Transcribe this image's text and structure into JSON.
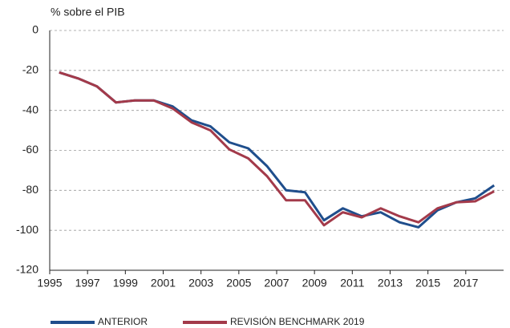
{
  "chart_data": {
    "type": "line",
    "y_axis_label": "% sobre el PIB",
    "x": [
      1995.5,
      1996.5,
      1997.5,
      1998.5,
      1999.5,
      2000.5,
      2001.5,
      2002.5,
      2003.5,
      2004.5,
      2005.5,
      2006.5,
      2007.5,
      2008.5,
      2009.5,
      2010.5,
      2011.5,
      2012.5,
      2013.5,
      2014.5,
      2015.5,
      2016.5,
      2017.5,
      2018.5
    ],
    "series": [
      {
        "name": "ANTERIOR",
        "color": "#1f4e8c",
        "values": [
          -21,
          -24,
          -28,
          -36,
          -35,
          -35,
          -38,
          -45,
          -48,
          -56,
          -59,
          -68,
          -80,
          -81,
          -95,
          -89,
          -93,
          -91,
          -96,
          -98.5,
          -90,
          -86,
          -84,
          -77.5
        ]
      },
      {
        "name": "REVISIÓN BENCHMARK 2019",
        "color": "#a33a4a",
        "values": [
          -21,
          -24,
          -28,
          -36,
          -35,
          -35,
          -39,
          -46,
          -50,
          -59.5,
          -64,
          -73,
          -85,
          -85,
          -97.5,
          -91,
          -93.5,
          -89,
          -93,
          -96,
          -89,
          -86,
          -85.5,
          -80.5
        ]
      }
    ],
    "xlim": [
      1995,
      2019
    ],
    "xticks": [
      1995,
      1997,
      1999,
      2001,
      2003,
      2005,
      2007,
      2009,
      2011,
      2013,
      2015,
      2017
    ],
    "ylim": [
      -120,
      0
    ],
    "yticks": [
      0,
      -20,
      -40,
      -60,
      -80,
      -100,
      -120
    ],
    "grid": true
  }
}
